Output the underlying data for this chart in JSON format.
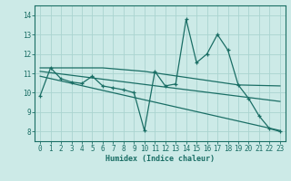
{
  "xlabel": "Humidex (Indice chaleur)",
  "bg_color": "#cceae7",
  "grid_color": "#aad4d0",
  "line_color": "#1a6e65",
  "xlim": [
    -0.5,
    23.5
  ],
  "ylim": [
    7.5,
    14.5
  ],
  "xticks": [
    0,
    1,
    2,
    3,
    4,
    5,
    6,
    7,
    8,
    9,
    10,
    11,
    12,
    13,
    14,
    15,
    16,
    17,
    18,
    19,
    20,
    21,
    22,
    23
  ],
  "yticks": [
    8,
    9,
    10,
    11,
    12,
    13,
    14
  ],
  "series0_x": [
    0,
    1,
    2,
    3,
    4,
    5,
    6,
    7,
    8,
    9,
    10,
    11,
    12,
    13,
    14,
    15,
    16,
    17,
    18,
    19,
    20,
    21,
    22,
    23
  ],
  "series0_y": [
    9.85,
    11.28,
    10.72,
    10.55,
    10.48,
    10.85,
    10.35,
    10.25,
    10.15,
    10.0,
    8.05,
    11.1,
    10.35,
    10.45,
    13.78,
    11.55,
    12.0,
    13.0,
    12.2,
    10.4,
    9.7,
    8.8,
    8.15,
    8.0
  ],
  "series1_x": [
    0,
    6,
    10,
    19,
    23
  ],
  "series1_y": [
    11.28,
    11.28,
    11.1,
    10.4,
    10.35
  ],
  "series2_x": [
    0,
    23
  ],
  "series2_y": [
    11.1,
    9.55
  ],
  "series3_x": [
    0,
    23
  ],
  "series3_y": [
    10.85,
    8.05
  ]
}
